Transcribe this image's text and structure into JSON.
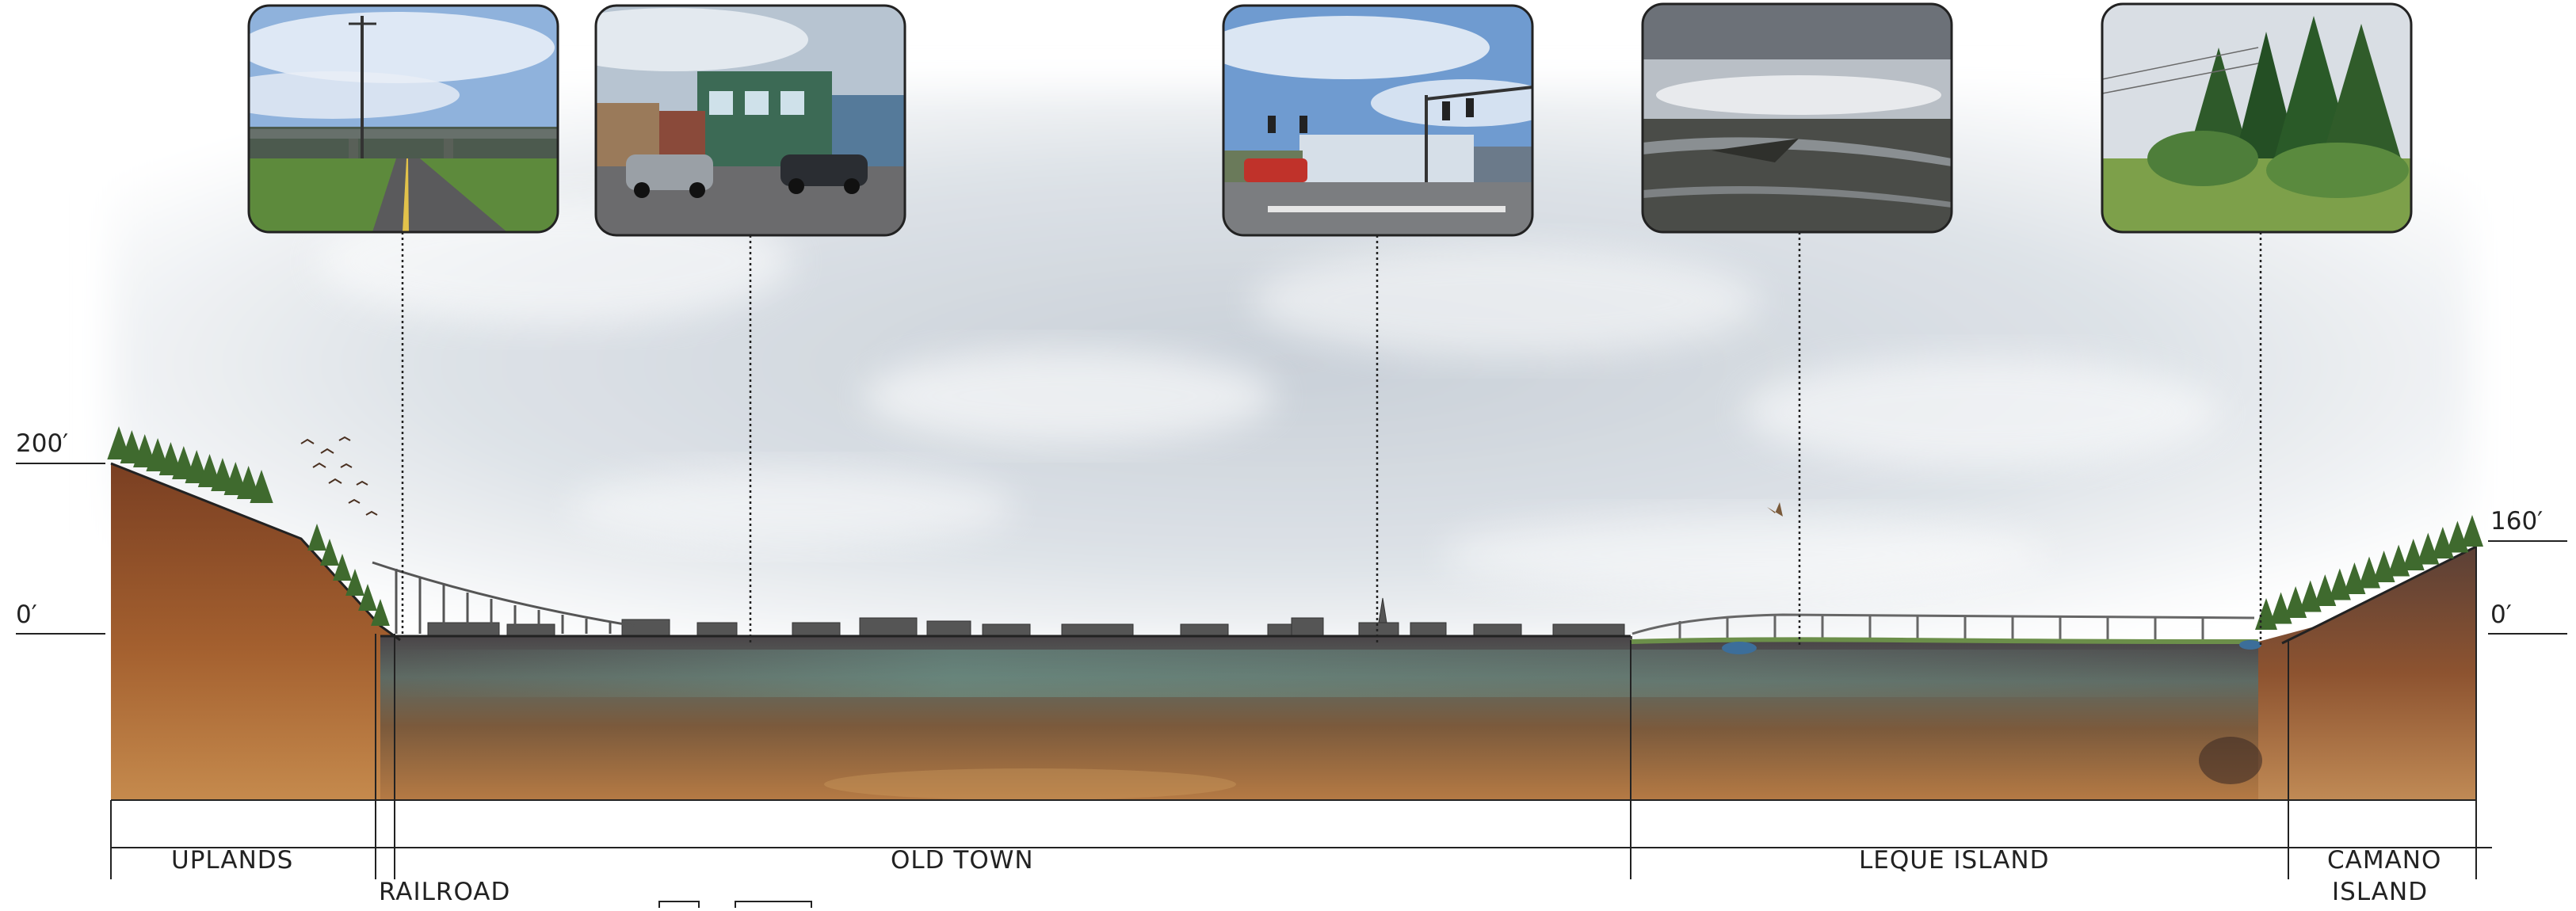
{
  "elevations": {
    "left_top": "200′",
    "left_base": "0′",
    "right_top": "160′",
    "right_base": "0′"
  },
  "zones": {
    "uplands": "UPLANDS",
    "railroad": "RAILROAD",
    "old_town": "OLD TOWN",
    "leque_island": "LEQUE ISLAND",
    "camano_island_line1": "CAMANO",
    "camano_island_line2": "ISLAND"
  },
  "photos": [
    {
      "subject": "highway overpass road"
    },
    {
      "subject": "old town storefront with parked cars"
    },
    {
      "subject": "intersection with traffic signals"
    },
    {
      "subject": "tidal mudflat shoreline"
    },
    {
      "subject": "forest edge and meadow"
    }
  ],
  "colors": {
    "soil_dark": "#6e3a22",
    "soil_mid": "#9a5a33",
    "soil_light": "#c08a55",
    "teal_band": "#6f8f86",
    "sky": "#d7dde3",
    "tree": "#3f6a2e",
    "line": "#222222"
  }
}
